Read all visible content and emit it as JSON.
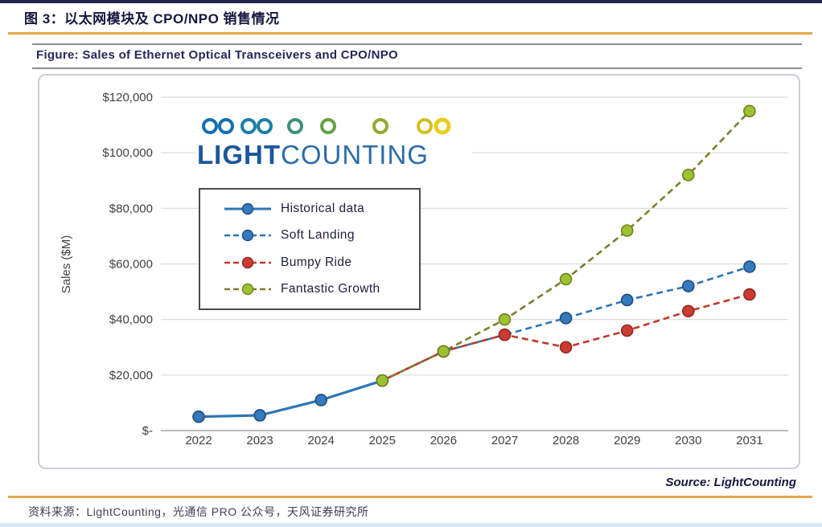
{
  "header": {
    "title": "图 3：以太网模块及 CPO/NPO 销售情况",
    "figure_caption": "Figure: Sales of Ethernet Optical Transceivers and CPO/NPO"
  },
  "logo": {
    "light": "LIGHT",
    "counting": "COUNTING"
  },
  "footer": {
    "source": "Source: LightCounting",
    "note": "资料来源：LightCounting，光通信 PRO 公众号，天风证券研究所"
  },
  "colors": {
    "accent_gold": "#E2A84B",
    "title_navy": "#16163F",
    "grid_gray": "#D9D9D9",
    "axis_gray": "#A6A6A6",
    "historical_blue": "#2E75B6",
    "bumpy_ride_red": "#C0392B",
    "fantastic_growth_olive": "#7D7D2B",
    "fantastic_growth_marker": "#9CC233"
  },
  "chart_data": {
    "type": "line",
    "title": "",
    "xlabel": "",
    "ylabel": "Sales ($M)",
    "ylim": [
      0,
      120000
    ],
    "grid": true,
    "legend_position": "upper-left-box",
    "categories": [
      "2022",
      "2023",
      "2024",
      "2025",
      "2026",
      "2027",
      "2028",
      "2029",
      "2030",
      "2031"
    ],
    "y_ticks": {
      "values": [
        0,
        20000,
        40000,
        60000,
        80000,
        100000,
        120000
      ],
      "labels": [
        "$-",
        "$20,000",
        "$40,000",
        "$60,000",
        "$80,000",
        "$100,000",
        "$120,000"
      ]
    },
    "series": [
      {
        "name": "Historical data",
        "line_style": "solid",
        "line_color": "#2E75B6",
        "marker_fill": "#3579BE",
        "marker_stroke": "#1F4E79",
        "values": [
          5000,
          5500,
          11000,
          18000,
          null,
          null,
          null,
          null,
          null,
          null
        ]
      },
      {
        "name": "Soft Landing",
        "line_style": "dashed",
        "line_color": "#2E75B6",
        "marker_fill": "#3579BE",
        "marker_stroke": "#1F4E79",
        "values": [
          null,
          null,
          null,
          18000,
          28500,
          34500,
          40500,
          47000,
          52000,
          59000
        ]
      },
      {
        "name": "Bumpy Ride",
        "line_style": "dashed",
        "line_color": "#C0392B",
        "marker_fill": "#CC3B31",
        "marker_stroke": "#8E2820",
        "values": [
          null,
          null,
          null,
          18000,
          28500,
          34500,
          30000,
          36000,
          43000,
          49000
        ]
      },
      {
        "name": "Fantastic Growth",
        "line_style": "dashed",
        "line_color": "#7D7D2B",
        "marker_fill": "#9CC233",
        "marker_stroke": "#71801F",
        "values": [
          null,
          null,
          null,
          18000,
          28500,
          40000,
          54500,
          72000,
          92000,
          115000
        ]
      }
    ]
  }
}
